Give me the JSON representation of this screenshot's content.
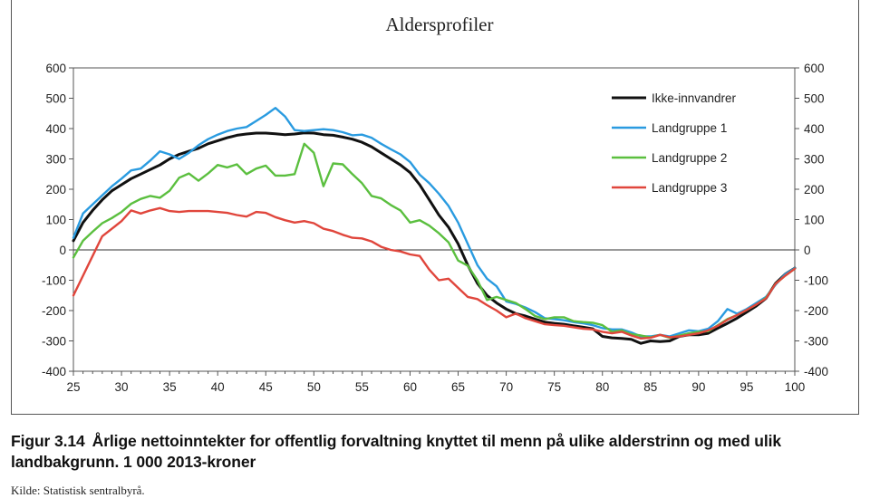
{
  "caption": {
    "figure_number": "Figur 3.14",
    "text": "Årlige nettoinntekter for offentlig forvaltning knyttet til menn på ulike alderstrinn og med ulik landbakgrunn. 1 000 2013-kroner"
  },
  "source": "Kilde: Statistisk sentralbyrå.",
  "chart_data": {
    "type": "line",
    "title": "Aldersprofiler",
    "xlim": [
      25,
      100
    ],
    "ylim": [
      -400,
      600
    ],
    "x_ticks": [
      25,
      30,
      35,
      40,
      45,
      50,
      55,
      60,
      65,
      70,
      75,
      80,
      85,
      90,
      95,
      100
    ],
    "y_ticks": [
      -400,
      -300,
      -200,
      -100,
      0,
      100,
      200,
      300,
      400,
      500,
      600
    ],
    "legend_position": "top-right",
    "grid": false,
    "series": [
      {
        "name": "Ikke-innvandrer",
        "color": "#111111",
        "x": [
          25,
          26,
          27,
          28,
          29,
          30,
          31,
          32,
          33,
          34,
          35,
          36,
          37,
          38,
          39,
          40,
          41,
          42,
          43,
          44,
          45,
          46,
          47,
          48,
          49,
          50,
          51,
          52,
          53,
          54,
          55,
          56,
          57,
          58,
          59,
          60,
          61,
          62,
          63,
          64,
          65,
          66,
          67,
          68,
          69,
          70,
          71,
          72,
          73,
          74,
          75,
          76,
          77,
          78,
          79,
          80,
          81,
          82,
          83,
          84,
          85,
          86,
          87,
          88,
          89,
          90,
          91,
          92,
          93,
          94,
          95,
          96,
          97,
          98,
          99,
          100
        ],
        "values": [
          30,
          90,
          130,
          165,
          195,
          215,
          235,
          250,
          265,
          280,
          300,
          315,
          325,
          335,
          350,
          360,
          370,
          378,
          382,
          385,
          385,
          383,
          380,
          382,
          386,
          385,
          380,
          378,
          372,
          365,
          355,
          340,
          320,
          300,
          280,
          255,
          215,
          165,
          115,
          75,
          20,
          -50,
          -110,
          -150,
          -175,
          -195,
          -210,
          -218,
          -228,
          -238,
          -242,
          -245,
          -250,
          -255,
          -260,
          -285,
          -290,
          -292,
          -295,
          -308,
          -300,
          -302,
          -300,
          -285,
          -280,
          -280,
          -275,
          -258,
          -242,
          -225,
          -205,
          -185,
          -160,
          -110,
          -80,
          -60
        ]
      },
      {
        "name": "Landgruppe 1",
        "color": "#2a9be0",
        "x": [
          25,
          26,
          27,
          28,
          29,
          30,
          31,
          32,
          33,
          34,
          35,
          36,
          37,
          38,
          39,
          40,
          41,
          42,
          43,
          44,
          45,
          46,
          47,
          48,
          49,
          50,
          51,
          52,
          53,
          54,
          55,
          56,
          57,
          58,
          59,
          60,
          61,
          62,
          63,
          64,
          65,
          66,
          67,
          68,
          69,
          70,
          71,
          72,
          73,
          74,
          75,
          76,
          77,
          78,
          79,
          80,
          81,
          82,
          83,
          84,
          85,
          86,
          87,
          88,
          89,
          90,
          91,
          92,
          93,
          94,
          95,
          96,
          97,
          98,
          99,
          100
        ],
        "values": [
          40,
          120,
          150,
          180,
          210,
          235,
          262,
          268,
          295,
          325,
          315,
          300,
          320,
          345,
          365,
          380,
          392,
          400,
          405,
          425,
          445,
          468,
          440,
          395,
          392,
          395,
          398,
          395,
          388,
          378,
          380,
          370,
          350,
          332,
          315,
          290,
          248,
          220,
          185,
          145,
          90,
          20,
          -50,
          -95,
          -120,
          -170,
          -178,
          -190,
          -205,
          -225,
          -228,
          -232,
          -238,
          -242,
          -248,
          -258,
          -262,
          -262,
          -272,
          -285,
          -285,
          -280,
          -285,
          -275,
          -265,
          -268,
          -260,
          -235,
          -195,
          -210,
          -195,
          -175,
          -155,
          -115,
          -80,
          -60
        ]
      },
      {
        "name": "Landgruppe 2",
        "color": "#5bbf3f",
        "x": [
          25,
          26,
          27,
          28,
          29,
          30,
          31,
          32,
          33,
          34,
          35,
          36,
          37,
          38,
          39,
          40,
          41,
          42,
          43,
          44,
          45,
          46,
          47,
          48,
          49,
          50,
          51,
          52,
          53,
          54,
          55,
          56,
          57,
          58,
          59,
          60,
          61,
          62,
          63,
          64,
          65,
          66,
          67,
          68,
          69,
          70,
          71,
          72,
          73,
          74,
          75,
          76,
          77,
          78,
          79,
          80,
          81,
          82,
          83,
          84,
          85,
          86,
          87,
          88,
          89,
          90,
          91,
          92,
          93,
          94,
          95,
          96,
          97,
          98,
          99,
          100
        ],
        "values": [
          -25,
          30,
          60,
          88,
          105,
          125,
          152,
          168,
          178,
          172,
          195,
          238,
          252,
          228,
          252,
          280,
          272,
          282,
          250,
          268,
          278,
          245,
          245,
          250,
          350,
          320,
          210,
          285,
          282,
          250,
          220,
          178,
          170,
          148,
          130,
          90,
          98,
          80,
          55,
          25,
          -35,
          -52,
          -100,
          -165,
          -155,
          -165,
          -175,
          -195,
          -218,
          -228,
          -222,
          -222,
          -235,
          -238,
          -240,
          -248,
          -270,
          -265,
          -278,
          -282,
          -288,
          -280,
          -290,
          -282,
          -275,
          -270,
          -268,
          -248,
          -228,
          -215,
          -198,
          -180,
          -158,
          -112,
          -85,
          -62
        ]
      },
      {
        "name": "Landgruppe 3",
        "color": "#e0463c",
        "x": [
          25,
          26,
          27,
          28,
          29,
          30,
          31,
          32,
          33,
          34,
          35,
          36,
          37,
          38,
          39,
          40,
          41,
          42,
          43,
          44,
          45,
          46,
          47,
          48,
          49,
          50,
          51,
          52,
          53,
          54,
          55,
          56,
          57,
          58,
          59,
          60,
          61,
          62,
          63,
          64,
          65,
          66,
          67,
          68,
          69,
          70,
          71,
          72,
          73,
          74,
          75,
          76,
          77,
          78,
          79,
          80,
          81,
          82,
          83,
          84,
          85,
          86,
          87,
          88,
          89,
          90,
          91,
          92,
          93,
          94,
          95,
          96,
          97,
          98,
          99,
          100
        ],
        "values": [
          -150,
          -85,
          -20,
          45,
          70,
          95,
          130,
          120,
          130,
          138,
          128,
          125,
          128,
          128,
          128,
          125,
          122,
          115,
          110,
          125,
          122,
          108,
          98,
          90,
          95,
          88,
          70,
          62,
          50,
          40,
          38,
          28,
          10,
          0,
          -5,
          -15,
          -20,
          -65,
          -100,
          -95,
          -125,
          -155,
          -162,
          -182,
          -200,
          -222,
          -210,
          -225,
          -235,
          -245,
          -248,
          -250,
          -255,
          -260,
          -262,
          -270,
          -275,
          -270,
          -282,
          -292,
          -290,
          -280,
          -288,
          -285,
          -280,
          -275,
          -265,
          -250,
          -230,
          -215,
          -198,
          -180,
          -160,
          -112,
          -85,
          -62
        ]
      }
    ]
  }
}
